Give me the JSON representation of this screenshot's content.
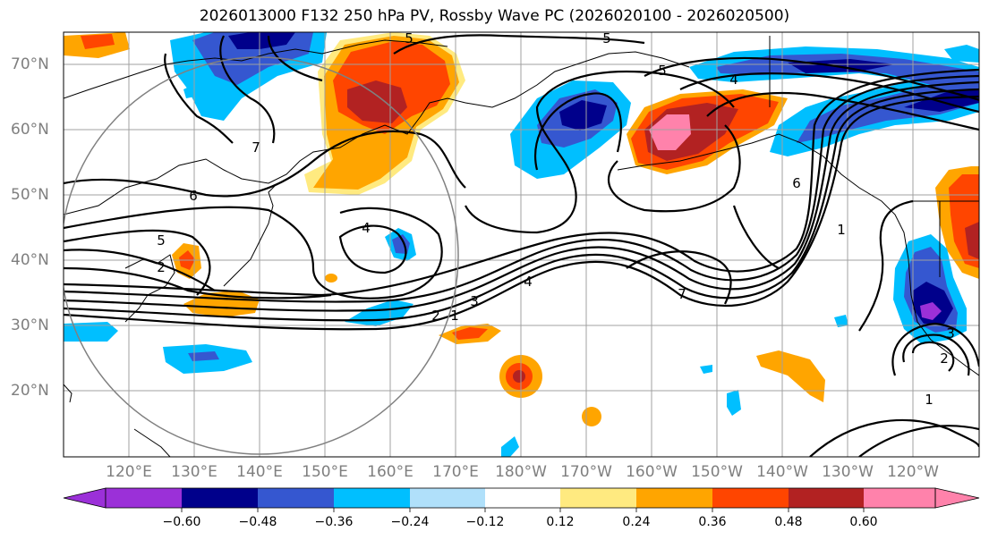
{
  "title": "2026013000 F132 250 hPa PV, Rossby Wave PC (2026020100 - 2026020500)",
  "lat_labels": [
    "70°N",
    "60°N",
    "50°N",
    "40°N",
    "30°N",
    "20°N"
  ],
  "lon_labels": [
    "120°E",
    "130°E",
    "140°E",
    "150°E",
    "160°E",
    "170°E",
    "180°W",
    "170°W",
    "160°W",
    "150°W",
    "140°W",
    "130°W",
    "120°W"
  ],
  "contour_labels": [
    "5",
    "5",
    "5",
    "7",
    "6",
    "5",
    "2",
    "2",
    "1",
    "3",
    "4",
    "4",
    "4",
    "7",
    "6",
    "1",
    "3",
    "2",
    "1"
  ],
  "colorbar": {
    "tick_labels": [
      "−0.60",
      "−0.48",
      "−0.36",
      "−0.24",
      "−0.12",
      "0.12",
      "0.24",
      "0.36",
      "0.48",
      "0.60"
    ],
    "colors": [
      "#9b30d8",
      "#00008b",
      "#3557d0",
      "#00bfff",
      "#b0e0fa",
      "#ffffff",
      "#ffea80",
      "#ffa500",
      "#ff4500",
      "#b22222",
      "#ff82ab",
      "#ff82ab"
    ]
  },
  "colors": {
    "neg_strong": "#00008b",
    "neg_mid": "#3557d0",
    "neg_light": "#00bfff",
    "pos_light": "#ffa500",
    "pos_mid": "#ff4500",
    "pos_strong": "#b22222",
    "pos_max": "#ff82ab",
    "grid": "#a0a0a0"
  }
}
